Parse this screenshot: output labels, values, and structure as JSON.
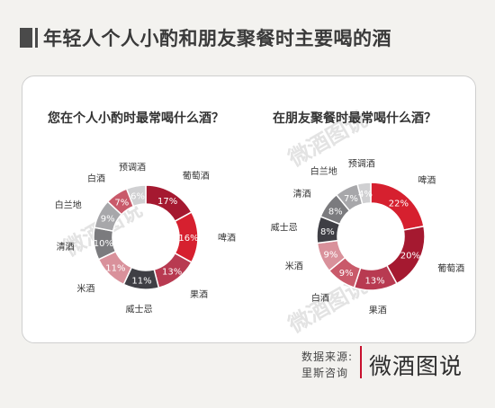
{
  "header": {
    "title": "年轻人个人小酌和朋友聚餐时主要喝的酒"
  },
  "watermark": "微酒图说",
  "source": {
    "line1": "数据来源:",
    "line2": "里斯咨询"
  },
  "logo": {
    "text": "微酒图说"
  },
  "chart_data": [
    {
      "type": "pie",
      "donut": true,
      "title": "您在个人小酌时最常喝什么酒？",
      "categories": [
        "葡萄酒",
        "啤酒",
        "果酒",
        "威士忌",
        "米酒",
        "清酒",
        "白兰地",
        "白酒",
        "预调酒"
      ],
      "values": [
        17,
        16,
        13,
        11,
        11,
        10,
        9,
        7,
        6
      ],
      "value_labels": [
        "17%",
        "16%",
        "13%",
        "11%",
        "11%",
        "10%",
        "9%",
        "7%",
        "6%"
      ],
      "colors": [
        "#a51930",
        "#d6202f",
        "#b83a51",
        "#3f3f45",
        "#d9919b",
        "#7b7b7e",
        "#a7a7aa",
        "#c95a6a",
        "#d0d0d2"
      ]
    },
    {
      "type": "pie",
      "donut": true,
      "title": "在朋友聚餐时最常喝什么酒？",
      "categories": [
        "啤酒",
        "葡萄酒",
        "果酒",
        "白酒",
        "米酒",
        "威士忌",
        "清酒",
        "白兰地",
        "预调酒"
      ],
      "values": [
        22,
        20,
        13,
        9,
        9,
        8,
        8,
        7,
        4
      ],
      "value_labels": [
        "22%",
        "20%",
        "13%",
        "9%",
        "9%",
        "8%",
        "8%",
        "7%",
        "4%"
      ],
      "colors": [
        "#d6202f",
        "#a51930",
        "#b83a51",
        "#c95a6a",
        "#d9919b",
        "#3f3f45",
        "#7b7b7e",
        "#a7a7aa",
        "#d0d0d2"
      ]
    }
  ]
}
